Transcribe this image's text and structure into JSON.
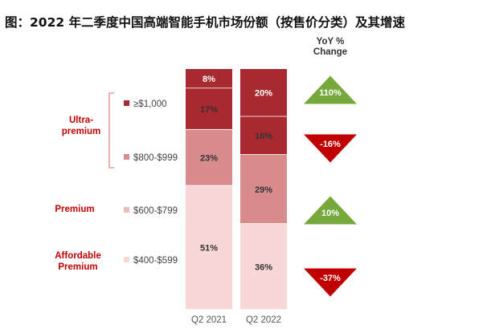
{
  "title": "图：2022 年二季度中国高端智能手机市场份额（按售价分类）及其增速",
  "colors": {
    "ge1000": "#A8292F",
    "r800_999": "#D98C8C",
    "r600_799": "#E9BDBD",
    "r400_599": "#F8D7D7",
    "yoy_up": "#76A83C",
    "yoy_down": "#C00000",
    "segment_label": "#C00000",
    "bracket": "#E06666"
  },
  "chart_data": {
    "type": "bar",
    "stacked": true,
    "percent_stacked": true,
    "categories": [
      "Q2 2021",
      "Q2 2022"
    ],
    "series": [
      {
        "name": "$400-$599",
        "values": [
          51,
          36
        ],
        "color_key": "r400_599"
      },
      {
        "name": "$600-$799",
        "values": [
          0,
          0
        ],
        "color_key": "r600_799"
      },
      {
        "name": "$800-$999",
        "values": [
          23,
          29
        ],
        "color_key": "r800_999"
      },
      {
        "name": "≥$1,000",
        "values": [
          17,
          16
        ],
        "color_key": "ge1000"
      },
      {
        "name": "",
        "values": [
          8,
          20
        ],
        "color_key": "ge1000"
      }
    ],
    "data_labels": [
      [
        "51%",
        "23%",
        "17%",
        "8%"
      ],
      [
        "36%",
        "29%",
        "16%",
        "20%"
      ]
    ],
    "legend": [
      "≥$1,000",
      "$800-$999",
      "$600-$799",
      "$400-$599"
    ],
    "segments": [
      "Ultra-\npremium",
      "Premium",
      "Affordable\nPremium"
    ],
    "yoy": {
      "header": "YoY %\nChange",
      "values": [
        110,
        -16,
        10,
        -37
      ],
      "labels": [
        "110%",
        "-16%",
        "10%",
        "-37%"
      ]
    },
    "ylim": [
      0,
      100
    ],
    "xlabel": "",
    "ylabel": ""
  }
}
